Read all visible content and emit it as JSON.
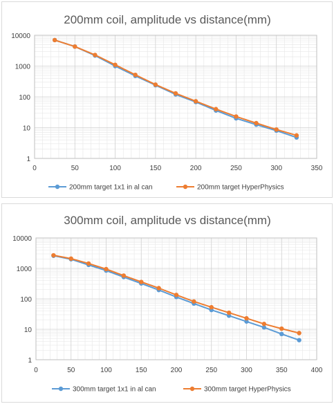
{
  "colors": {
    "series_blue": "#5b9bd5",
    "series_orange": "#ed7d31"
  },
  "chart_data": [
    {
      "type": "line",
      "title": "200mm coil, amplitude vs distance(mm)",
      "xlabel": "",
      "ylabel": "",
      "xlim": [
        0,
        350
      ],
      "ylim": [
        1,
        10000
      ],
      "y_scale": "log",
      "x_ticks": [
        0,
        50,
        100,
        150,
        200,
        250,
        300,
        350
      ],
      "y_ticks": [
        1,
        10,
        100,
        1000,
        10000
      ],
      "grid": true,
      "legend_position": "bottom",
      "series": [
        {
          "name": "200mm target 1x1 in al can",
          "color": "#5b9bd5",
          "x": [
            25,
            50,
            75,
            100,
            125,
            150,
            175,
            200,
            225,
            250,
            275,
            300,
            325
          ],
          "y": [
            7000,
            4300,
            2200,
            1000,
            480,
            240,
            120,
            68,
            36,
            20,
            12.5,
            8,
            4.8
          ]
        },
        {
          "name": "200mm target HyperPhysics",
          "color": "#ed7d31",
          "x": [
            25,
            50,
            75,
            100,
            125,
            150,
            175,
            200,
            225,
            250,
            275,
            300,
            325
          ],
          "y": [
            7000,
            4300,
            2300,
            1100,
            520,
            250,
            130,
            72,
            40,
            23,
            14,
            8.7,
            5.6
          ]
        }
      ]
    },
    {
      "type": "line",
      "title": "300mm coil, amplitude vs distance(mm)",
      "xlabel": "",
      "ylabel": "",
      "xlim": [
        0,
        400
      ],
      "ylim": [
        1,
        10000
      ],
      "y_scale": "log",
      "x_ticks": [
        0,
        50,
        100,
        150,
        200,
        250,
        300,
        350,
        400
      ],
      "y_ticks": [
        1,
        10,
        100,
        1000,
        10000
      ],
      "grid": true,
      "legend_position": "bottom",
      "series": [
        {
          "name": "300mm target 1x1 in al can",
          "color": "#5b9bd5",
          "x": [
            25,
            50,
            75,
            100,
            125,
            150,
            175,
            200,
            225,
            250,
            275,
            300,
            325,
            350,
            375
          ],
          "y": [
            2600,
            2000,
            1300,
            850,
            520,
            320,
            195,
            115,
            70,
            43,
            28,
            18,
            11.5,
            7,
            4.4
          ]
        },
        {
          "name": "300mm target HyperPhysics",
          "color": "#ed7d31",
          "x": [
            25,
            50,
            75,
            100,
            125,
            150,
            175,
            200,
            225,
            250,
            275,
            300,
            325,
            350,
            375
          ],
          "y": [
            2700,
            2100,
            1450,
            950,
            580,
            360,
            225,
            135,
            82,
            53,
            35,
            23,
            15,
            10.5,
            7.5
          ]
        }
      ]
    }
  ]
}
